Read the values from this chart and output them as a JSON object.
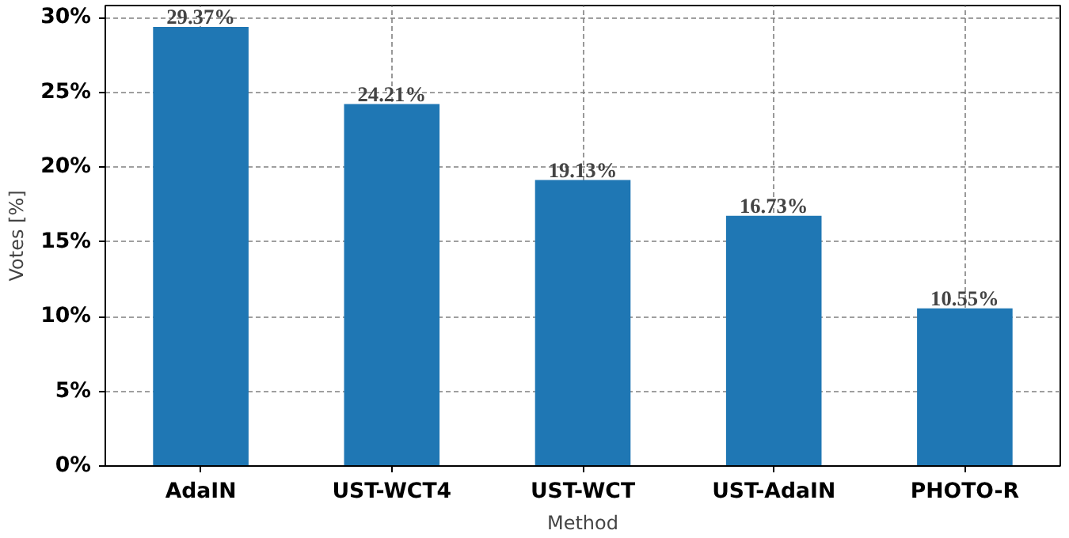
{
  "chart_data": {
    "type": "bar",
    "xlabel": "Method",
    "ylabel": "Votes [%]",
    "categories": [
      "AdaIN",
      "UST-WCT4",
      "UST-WCT",
      "UST-AdaIN",
      "PHOTO-R"
    ],
    "values": [
      29.37,
      24.21,
      19.13,
      16.73,
      10.55
    ],
    "value_labels": [
      "29.37%",
      "24.21%",
      "19.13%",
      "16.73%",
      "10.55%"
    ],
    "color": "#1f77b4",
    "ylim": [
      0,
      30.8
    ],
    "yticks": [
      {
        "value": 0,
        "label": "0%"
      },
      {
        "value": 5,
        "label": "5%"
      },
      {
        "value": 10,
        "label": "10%"
      },
      {
        "value": 15,
        "label": "15%"
      },
      {
        "value": 20,
        "label": "20%"
      },
      {
        "value": 25,
        "label": "25%"
      },
      {
        "value": 30,
        "label": "30%"
      }
    ],
    "grid": true
  }
}
